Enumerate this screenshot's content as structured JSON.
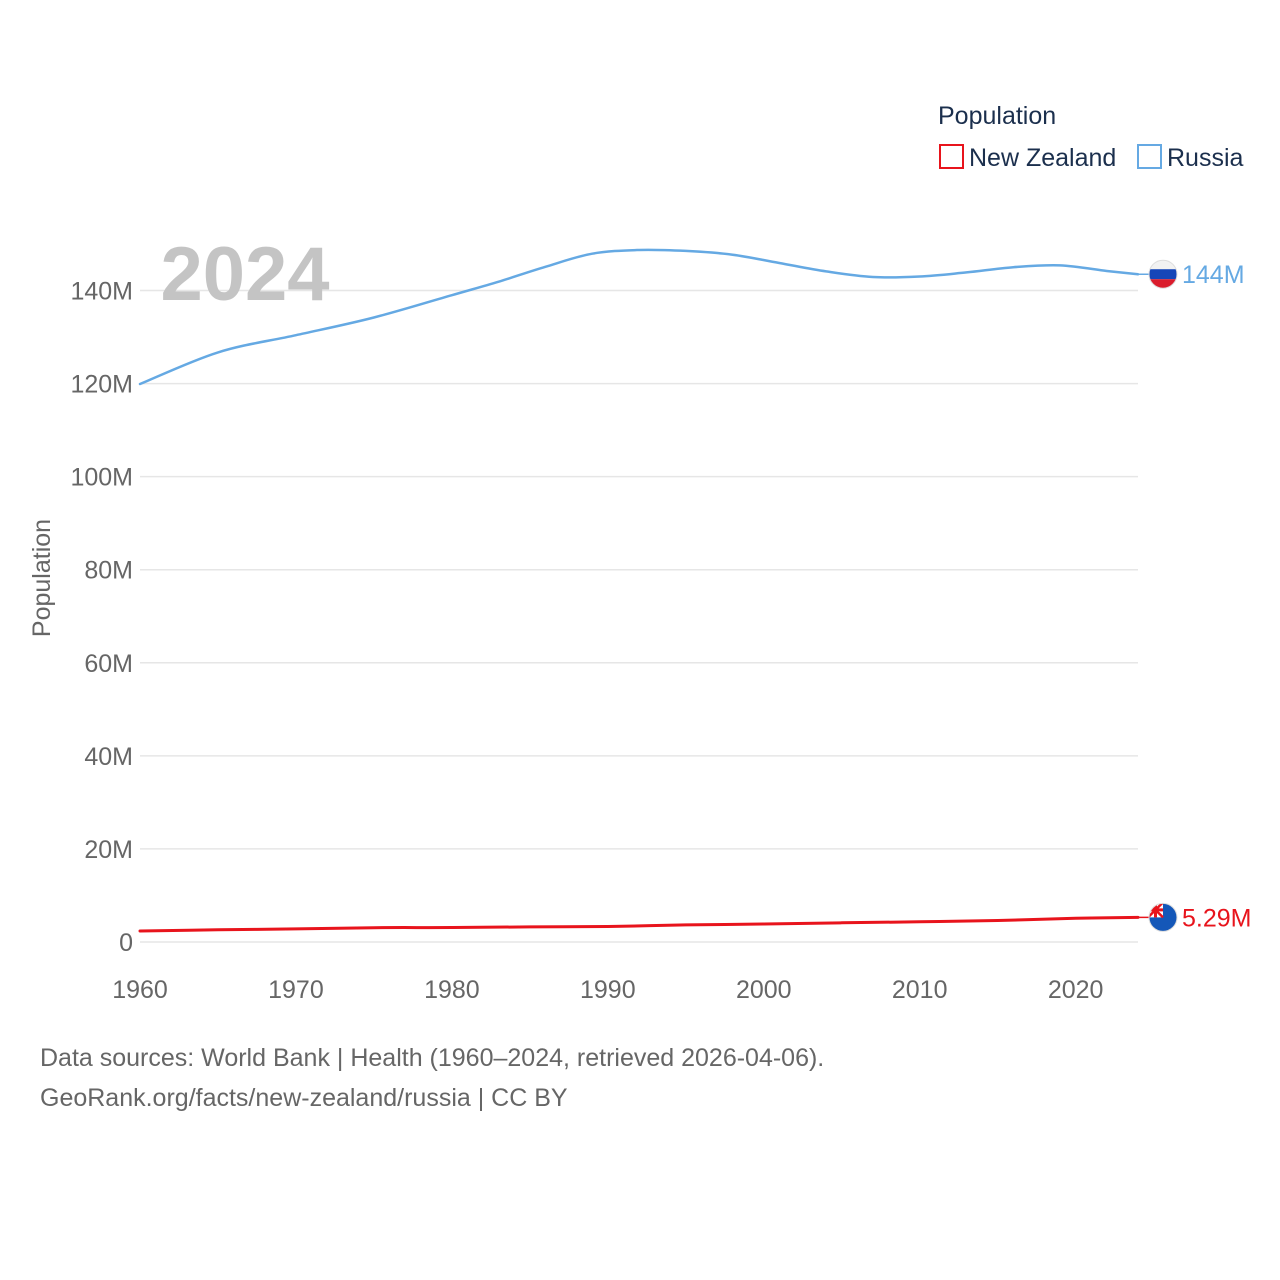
{
  "chart_data": {
    "type": "line",
    "year_label": "2024",
    "ylabel": "Population",
    "xlabel": "",
    "xlim": [
      1960,
      2024
    ],
    "ylim": [
      0,
      150000000
    ],
    "x_ticks": [
      1960,
      1970,
      1980,
      1990,
      2000,
      2010,
      2020
    ],
    "x_tick_labels": [
      "1960",
      "1970",
      "1980",
      "1990",
      "2000",
      "2010",
      "2020"
    ],
    "y_ticks": [
      0,
      20000000,
      40000000,
      60000000,
      80000000,
      100000000,
      120000000,
      140000000
    ],
    "y_tick_labels": [
      "0",
      "20M",
      "40M",
      "60M",
      "80M",
      "100M",
      "120M",
      "140M"
    ],
    "grid": true,
    "legend": {
      "title": "Population",
      "position": "top-right",
      "entries": [
        "New Zealand",
        "Russia"
      ]
    },
    "series": [
      {
        "name": "New Zealand",
        "color": "#e8141c",
        "end_label": "5.29M",
        "flag_icon": "new-zealand-flag-icon",
        "x": [
          1960,
          1965,
          1970,
          1975,
          1980,
          1985,
          1990,
          1995,
          2000,
          2005,
          2010,
          2015,
          2020,
          2024
        ],
        "values": [
          2370000,
          2630000,
          2810000,
          3080000,
          3110000,
          3250000,
          3330000,
          3670000,
          3860000,
          4130000,
          4350000,
          4610000,
          5090000,
          5290000
        ]
      },
      {
        "name": "Russia",
        "color": "#65a9e3",
        "end_label": "144M",
        "flag_icon": "russia-flag-icon",
        "x": [
          1960,
          1965,
          1970,
          1975,
          1980,
          1983,
          1986,
          1989,
          1992,
          1995,
          1998,
          2001,
          2004,
          2007,
          2010,
          2013,
          2016,
          2019,
          2022,
          2024
        ],
        "values": [
          119900000,
          126700000,
          130400000,
          134200000,
          139000000,
          141900000,
          145100000,
          147900000,
          148700000,
          148500000,
          147700000,
          145900000,
          144100000,
          142900000,
          143000000,
          143900000,
          145000000,
          145400000,
          144200000,
          143500000
        ]
      }
    ]
  },
  "footer": {
    "sources": "Data sources: World Bank | Health (1960–2024, retrieved 2026-04-06).",
    "link": "GeoRank.org/facts/new-zealand/russia | CC BY"
  }
}
